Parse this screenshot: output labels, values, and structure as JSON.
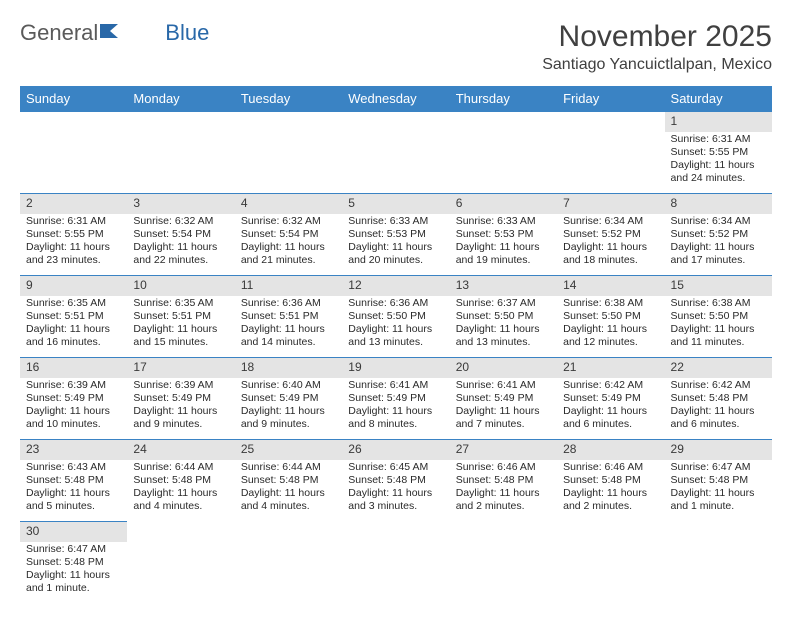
{
  "logo": {
    "text1": "General",
    "text2": "Blue"
  },
  "title": "November 2025",
  "location": "Santiago Yancuictlalpan, Mexico",
  "colors": {
    "header_bg": "#3a83c4",
    "header_text": "#ffffff",
    "daynum_bg": "#e4e4e4",
    "border": "#3a83c4",
    "text": "#2a2a2a",
    "title": "#404040",
    "logo_gray": "#5a5a5a",
    "logo_blue": "#2968a8"
  },
  "weekdays": [
    "Sunday",
    "Monday",
    "Tuesday",
    "Wednesday",
    "Thursday",
    "Friday",
    "Saturday"
  ],
  "weeks": [
    [
      null,
      null,
      null,
      null,
      null,
      null,
      {
        "n": "1",
        "sr": "Sunrise: 6:31 AM",
        "ss": "Sunset: 5:55 PM",
        "dl": "Daylight: 11 hours and 24 minutes."
      }
    ],
    [
      {
        "n": "2",
        "sr": "Sunrise: 6:31 AM",
        "ss": "Sunset: 5:55 PM",
        "dl": "Daylight: 11 hours and 23 minutes."
      },
      {
        "n": "3",
        "sr": "Sunrise: 6:32 AM",
        "ss": "Sunset: 5:54 PM",
        "dl": "Daylight: 11 hours and 22 minutes."
      },
      {
        "n": "4",
        "sr": "Sunrise: 6:32 AM",
        "ss": "Sunset: 5:54 PM",
        "dl": "Daylight: 11 hours and 21 minutes."
      },
      {
        "n": "5",
        "sr": "Sunrise: 6:33 AM",
        "ss": "Sunset: 5:53 PM",
        "dl": "Daylight: 11 hours and 20 minutes."
      },
      {
        "n": "6",
        "sr": "Sunrise: 6:33 AM",
        "ss": "Sunset: 5:53 PM",
        "dl": "Daylight: 11 hours and 19 minutes."
      },
      {
        "n": "7",
        "sr": "Sunrise: 6:34 AM",
        "ss": "Sunset: 5:52 PM",
        "dl": "Daylight: 11 hours and 18 minutes."
      },
      {
        "n": "8",
        "sr": "Sunrise: 6:34 AM",
        "ss": "Sunset: 5:52 PM",
        "dl": "Daylight: 11 hours and 17 minutes."
      }
    ],
    [
      {
        "n": "9",
        "sr": "Sunrise: 6:35 AM",
        "ss": "Sunset: 5:51 PM",
        "dl": "Daylight: 11 hours and 16 minutes."
      },
      {
        "n": "10",
        "sr": "Sunrise: 6:35 AM",
        "ss": "Sunset: 5:51 PM",
        "dl": "Daylight: 11 hours and 15 minutes."
      },
      {
        "n": "11",
        "sr": "Sunrise: 6:36 AM",
        "ss": "Sunset: 5:51 PM",
        "dl": "Daylight: 11 hours and 14 minutes."
      },
      {
        "n": "12",
        "sr": "Sunrise: 6:36 AM",
        "ss": "Sunset: 5:50 PM",
        "dl": "Daylight: 11 hours and 13 minutes."
      },
      {
        "n": "13",
        "sr": "Sunrise: 6:37 AM",
        "ss": "Sunset: 5:50 PM",
        "dl": "Daylight: 11 hours and 13 minutes."
      },
      {
        "n": "14",
        "sr": "Sunrise: 6:38 AM",
        "ss": "Sunset: 5:50 PM",
        "dl": "Daylight: 11 hours and 12 minutes."
      },
      {
        "n": "15",
        "sr": "Sunrise: 6:38 AM",
        "ss": "Sunset: 5:50 PM",
        "dl": "Daylight: 11 hours and 11 minutes."
      }
    ],
    [
      {
        "n": "16",
        "sr": "Sunrise: 6:39 AM",
        "ss": "Sunset: 5:49 PM",
        "dl": "Daylight: 11 hours and 10 minutes."
      },
      {
        "n": "17",
        "sr": "Sunrise: 6:39 AM",
        "ss": "Sunset: 5:49 PM",
        "dl": "Daylight: 11 hours and 9 minutes."
      },
      {
        "n": "18",
        "sr": "Sunrise: 6:40 AM",
        "ss": "Sunset: 5:49 PM",
        "dl": "Daylight: 11 hours and 9 minutes."
      },
      {
        "n": "19",
        "sr": "Sunrise: 6:41 AM",
        "ss": "Sunset: 5:49 PM",
        "dl": "Daylight: 11 hours and 8 minutes."
      },
      {
        "n": "20",
        "sr": "Sunrise: 6:41 AM",
        "ss": "Sunset: 5:49 PM",
        "dl": "Daylight: 11 hours and 7 minutes."
      },
      {
        "n": "21",
        "sr": "Sunrise: 6:42 AM",
        "ss": "Sunset: 5:49 PM",
        "dl": "Daylight: 11 hours and 6 minutes."
      },
      {
        "n": "22",
        "sr": "Sunrise: 6:42 AM",
        "ss": "Sunset: 5:48 PM",
        "dl": "Daylight: 11 hours and 6 minutes."
      }
    ],
    [
      {
        "n": "23",
        "sr": "Sunrise: 6:43 AM",
        "ss": "Sunset: 5:48 PM",
        "dl": "Daylight: 11 hours and 5 minutes."
      },
      {
        "n": "24",
        "sr": "Sunrise: 6:44 AM",
        "ss": "Sunset: 5:48 PM",
        "dl": "Daylight: 11 hours and 4 minutes."
      },
      {
        "n": "25",
        "sr": "Sunrise: 6:44 AM",
        "ss": "Sunset: 5:48 PM",
        "dl": "Daylight: 11 hours and 4 minutes."
      },
      {
        "n": "26",
        "sr": "Sunrise: 6:45 AM",
        "ss": "Sunset: 5:48 PM",
        "dl": "Daylight: 11 hours and 3 minutes."
      },
      {
        "n": "27",
        "sr": "Sunrise: 6:46 AM",
        "ss": "Sunset: 5:48 PM",
        "dl": "Daylight: 11 hours and 2 minutes."
      },
      {
        "n": "28",
        "sr": "Sunrise: 6:46 AM",
        "ss": "Sunset: 5:48 PM",
        "dl": "Daylight: 11 hours and 2 minutes."
      },
      {
        "n": "29",
        "sr": "Sunrise: 6:47 AM",
        "ss": "Sunset: 5:48 PM",
        "dl": "Daylight: 11 hours and 1 minute."
      }
    ],
    [
      {
        "n": "30",
        "sr": "Sunrise: 6:47 AM",
        "ss": "Sunset: 5:48 PM",
        "dl": "Daylight: 11 hours and 1 minute."
      },
      null,
      null,
      null,
      null,
      null,
      null
    ]
  ]
}
